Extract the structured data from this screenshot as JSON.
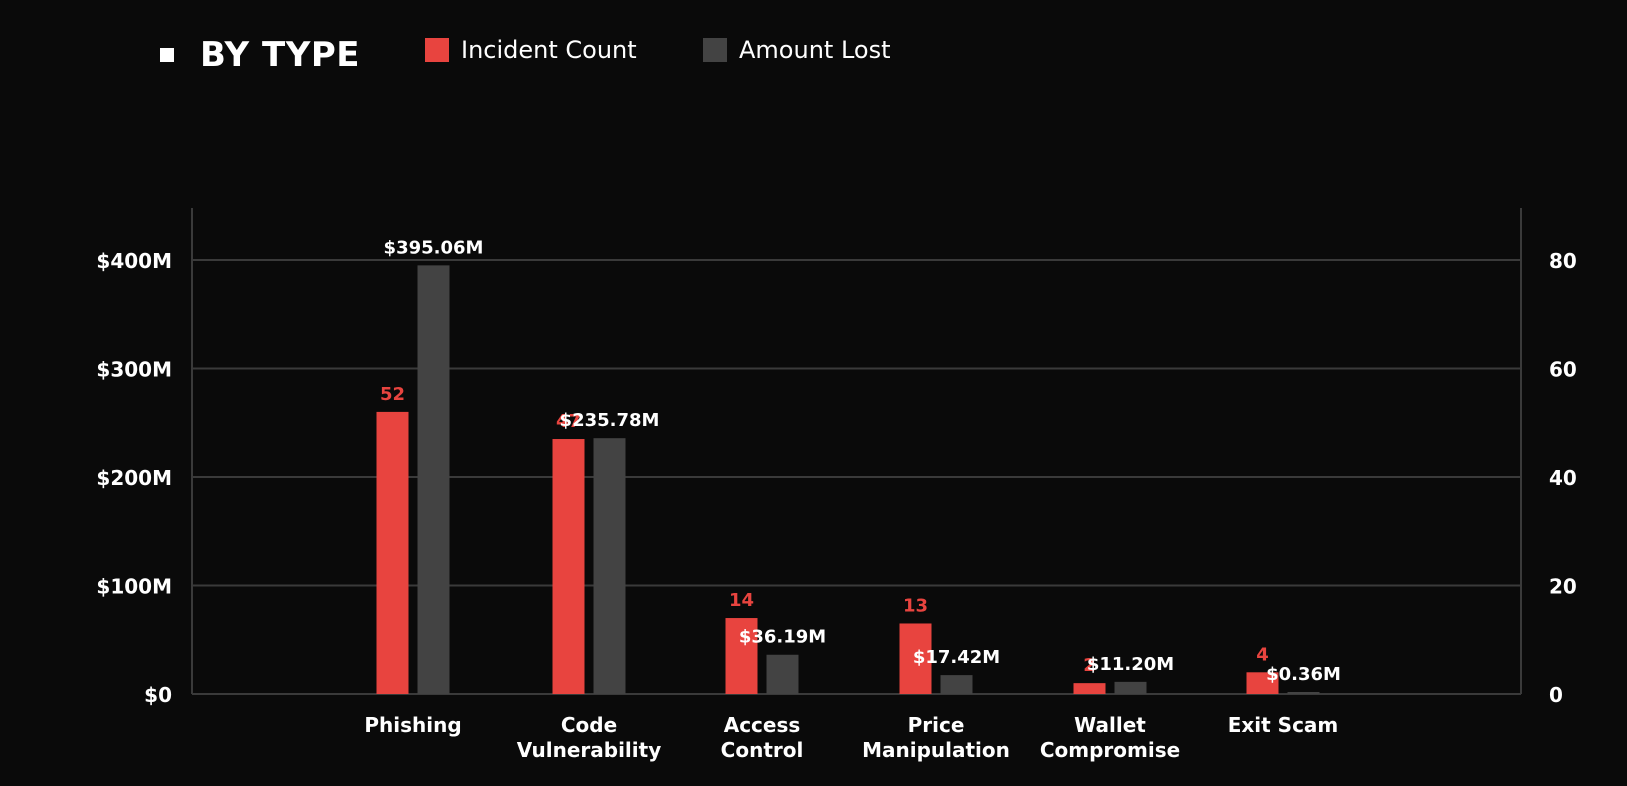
{
  "header": {
    "title": "BY TYPE"
  },
  "legend": [
    {
      "label": "Incident Count",
      "color": "#e8443f"
    },
    {
      "label": "Amount Lost",
      "color": "#434343"
    }
  ],
  "chart_data": {
    "type": "bar",
    "categories": [
      [
        "Phishing"
      ],
      [
        "Code",
        "Vulnerability"
      ],
      [
        "Access",
        "Control"
      ],
      [
        "Price",
        "Manipulation"
      ],
      [
        "Wallet",
        "Compromise"
      ],
      [
        "Exit Scam"
      ]
    ],
    "series": [
      {
        "name": "Incident Count",
        "axis": "right",
        "color": "#e8443f",
        "label_color": "#e8443f",
        "values": [
          52,
          47,
          14,
          13,
          2,
          4
        ],
        "labels": [
          "52",
          "47",
          "14",
          "13",
          "2",
          "4"
        ]
      },
      {
        "name": "Amount Lost",
        "axis": "left",
        "color": "#434343",
        "label_color": "#ffffff",
        "values": [
          395.06,
          235.78,
          36.19,
          17.42,
          11.2,
          0.36
        ],
        "labels": [
          "$395.06M",
          "$235.78M",
          "$36.19M",
          "$17.42M",
          "$11.20M",
          "$0.36M"
        ]
      }
    ],
    "y_left": {
      "ylim": [
        0,
        400
      ],
      "ticks": [
        0,
        100,
        200,
        300,
        400
      ],
      "tick_labels": [
        "$0",
        "$100M",
        "$200M",
        "$300M",
        "$400M"
      ]
    },
    "y_right": {
      "ylim": [
        0,
        80
      ],
      "ticks": [
        0,
        20,
        40,
        60,
        80
      ],
      "tick_labels": [
        "0",
        "20",
        "40",
        "60",
        "80"
      ]
    },
    "grid": true,
    "legend_position": "top"
  }
}
